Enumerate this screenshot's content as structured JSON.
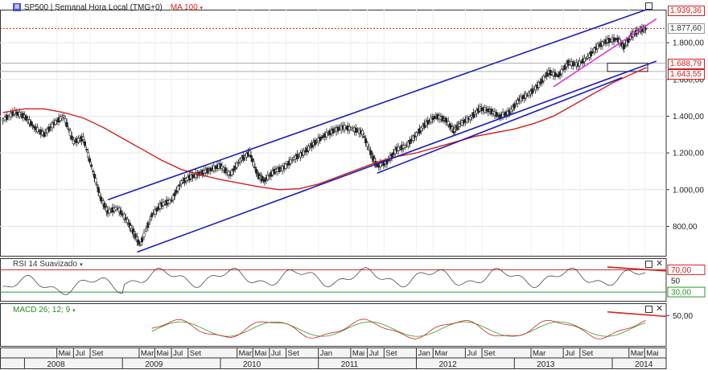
{
  "header": {
    "symbol_icon": "chart-symbol-icon",
    "title": "SP500 | Semanal Hora Local (TMG+0)",
    "ma_label": "MA 100",
    "caret": "▾"
  },
  "price_tags": [
    {
      "label": "1.939,36",
      "value": 1939.36,
      "color": "#d02020"
    },
    {
      "label": "1.877,60",
      "value": 1877.6,
      "color": "#333333"
    },
    {
      "label": "1.688,79",
      "value": 1688.79,
      "color": "#d02020"
    },
    {
      "label": "1.643,55",
      "value": 1643.55,
      "color": "#d02020"
    }
  ],
  "rsi": {
    "title": "RSI 14 Suavizado",
    "levels": [
      70,
      50,
      30
    ],
    "labels": [
      "70,00",
      "50",
      "30,00"
    ]
  },
  "macd": {
    "title": "MACD 26; 12; 9",
    "labels": [
      "50,00"
    ]
  },
  "chart_data": {
    "type": "line",
    "title": "SP500 | Semanal Hora Local (TMG+0)",
    "y_ticks": [
      {
        "label": "1.800,00",
        "value": 1800
      },
      {
        "label": "1.600,00",
        "value": 1600
      },
      {
        "label": "1.400,00",
        "value": 1400
      },
      {
        "label": "1.200,00",
        "value": 1200
      },
      {
        "label": "1.000,00",
        "value": 1000
      },
      {
        "label": "800,00",
        "value": 800
      }
    ],
    "ylim": [
      640,
      1980
    ],
    "xlim": [
      2007.75,
      2014.55
    ],
    "months": [
      {
        "label": "Mai",
        "t": 2008.33
      },
      {
        "label": "Jul",
        "t": 2008.5
      },
      {
        "label": "Set",
        "t": 2008.67
      },
      {
        "label": "Mar",
        "t": 2009.17
      },
      {
        "label": "Mai",
        "t": 2009.33
      },
      {
        "label": "Jul",
        "t": 2009.5
      },
      {
        "label": "Set",
        "t": 2009.67
      },
      {
        "label": "Mar",
        "t": 2010.17
      },
      {
        "label": "Mai",
        "t": 2010.33
      },
      {
        "label": "Jul",
        "t": 2010.5
      },
      {
        "label": "Set",
        "t": 2010.67
      },
      {
        "label": "Jan",
        "t": 2011.0
      },
      {
        "label": "Mai",
        "t": 2011.33
      },
      {
        "label": "Jul",
        "t": 2011.5
      },
      {
        "label": "Set",
        "t": 2011.67
      },
      {
        "label": "Jan",
        "t": 2012.0
      },
      {
        "label": "Mar",
        "t": 2012.17
      },
      {
        "label": "Jul",
        "t": 2012.5
      },
      {
        "label": "Set",
        "t": 2012.67
      },
      {
        "label": "Mar",
        "t": 2013.17
      },
      {
        "label": "Jul",
        "t": 2013.5
      },
      {
        "label": "Set",
        "t": 2013.67
      },
      {
        "label": "Mar",
        "t": 2014.17
      },
      {
        "label": "Mai",
        "t": 2014.33
      }
    ],
    "years": [
      {
        "label": "2008",
        "t": 2008.0
      },
      {
        "label": "2009",
        "t": 2009.0
      },
      {
        "label": "2010",
        "t": 2010.0
      },
      {
        "label": "2011",
        "t": 2011.0
      },
      {
        "label": "2012",
        "t": 2012.0
      },
      {
        "label": "2013",
        "t": 2013.0
      },
      {
        "label": "2014",
        "t": 2014.0
      }
    ],
    "series": [
      {
        "color": "#222222",
        "style": "candles",
        "points": [
          [
            2007.78,
            1380
          ],
          [
            2007.9,
            1420
          ],
          [
            2008.0,
            1400
          ],
          [
            2008.1,
            1340
          ],
          [
            2008.2,
            1300
          ],
          [
            2008.3,
            1360
          ],
          [
            2008.4,
            1400
          ],
          [
            2008.5,
            1260
          ],
          [
            2008.6,
            1280
          ],
          [
            2008.7,
            1100
          ],
          [
            2008.78,
            950
          ],
          [
            2008.85,
            880
          ],
          [
            2008.95,
            900
          ],
          [
            2009.05,
            830
          ],
          [
            2009.12,
            760
          ],
          [
            2009.18,
            700
          ],
          [
            2009.3,
            860
          ],
          [
            2009.4,
            920
          ],
          [
            2009.5,
            940
          ],
          [
            2009.6,
            1040
          ],
          [
            2009.7,
            1070
          ],
          [
            2009.8,
            1090
          ],
          [
            2009.9,
            1110
          ],
          [
            2010.0,
            1130
          ],
          [
            2010.1,
            1080
          ],
          [
            2010.2,
            1160
          ],
          [
            2010.3,
            1200
          ],
          [
            2010.38,
            1080
          ],
          [
            2010.45,
            1050
          ],
          [
            2010.55,
            1100
          ],
          [
            2010.65,
            1120
          ],
          [
            2010.75,
            1170
          ],
          [
            2010.85,
            1200
          ],
          [
            2010.95,
            1250
          ],
          [
            2011.05,
            1290
          ],
          [
            2011.15,
            1320
          ],
          [
            2011.25,
            1340
          ],
          [
            2011.35,
            1330
          ],
          [
            2011.45,
            1310
          ],
          [
            2011.55,
            1180
          ],
          [
            2011.6,
            1130
          ],
          [
            2011.7,
            1150
          ],
          [
            2011.8,
            1220
          ],
          [
            2011.9,
            1240
          ],
          [
            2012.0,
            1300
          ],
          [
            2012.1,
            1360
          ],
          [
            2012.2,
            1400
          ],
          [
            2012.3,
            1380
          ],
          [
            2012.38,
            1320
          ],
          [
            2012.45,
            1360
          ],
          [
            2012.55,
            1390
          ],
          [
            2012.65,
            1440
          ],
          [
            2012.75,
            1430
          ],
          [
            2012.85,
            1400
          ],
          [
            2012.95,
            1420
          ],
          [
            2013.05,
            1490
          ],
          [
            2013.15,
            1520
          ],
          [
            2013.25,
            1570
          ],
          [
            2013.35,
            1640
          ],
          [
            2013.45,
            1620
          ],
          [
            2013.55,
            1690
          ],
          [
            2013.65,
            1680
          ],
          [
            2013.75,
            1720
          ],
          [
            2013.85,
            1780
          ],
          [
            2013.95,
            1810
          ],
          [
            2014.05,
            1820
          ],
          [
            2014.12,
            1780
          ],
          [
            2014.2,
            1840
          ],
          [
            2014.28,
            1870
          ],
          [
            2014.35,
            1877
          ]
        ]
      },
      {
        "name": "MA 100",
        "color": "#d02020",
        "points": [
          [
            2007.78,
            1420
          ],
          [
            2008.0,
            1440
          ],
          [
            2008.2,
            1440
          ],
          [
            2008.4,
            1420
          ],
          [
            2008.6,
            1390
          ],
          [
            2008.8,
            1340
          ],
          [
            2009.0,
            1280
          ],
          [
            2009.2,
            1220
          ],
          [
            2009.4,
            1160
          ],
          [
            2009.6,
            1110
          ],
          [
            2009.8,
            1080
          ],
          [
            2010.0,
            1055
          ],
          [
            2010.2,
            1035
          ],
          [
            2010.4,
            1015
          ],
          [
            2010.6,
            1000
          ],
          [
            2010.8,
            1005
          ],
          [
            2011.0,
            1030
          ],
          [
            2011.2,
            1070
          ],
          [
            2011.4,
            1110
          ],
          [
            2011.6,
            1150
          ],
          [
            2011.8,
            1180
          ],
          [
            2012.0,
            1200
          ],
          [
            2012.2,
            1230
          ],
          [
            2012.4,
            1260
          ],
          [
            2012.6,
            1290
          ],
          [
            2012.8,
            1310
          ],
          [
            2013.0,
            1330
          ],
          [
            2013.2,
            1360
          ],
          [
            2013.4,
            1400
          ],
          [
            2013.6,
            1460
          ],
          [
            2013.8,
            1520
          ],
          [
            2014.0,
            1580
          ],
          [
            2014.2,
            1630
          ],
          [
            2014.35,
            1665
          ]
        ]
      }
    ],
    "trendlines": [
      {
        "color": "#1c1cb8",
        "from": [
          2008.85,
          945
        ],
        "to": [
          2014.4,
          1990
        ]
      },
      {
        "color": "#1c1cb8",
        "from": [
          2009.15,
          660
        ],
        "to": [
          2014.45,
          1700
        ]
      },
      {
        "color": "#1c1cb8",
        "from": [
          2011.6,
          1090
        ],
        "to": [
          2014.1,
          1610
        ]
      },
      {
        "color": "#d63cd6",
        "from": [
          2013.4,
          1560
        ],
        "to": [
          2014.45,
          1930
        ]
      }
    ],
    "reference_lines": [
      {
        "color": "#d02020",
        "value": 1877.6
      },
      {
        "color": "#b0b0b0",
        "value": 1688.79
      },
      {
        "color": "#b0b0b0",
        "value": 1643.55
      }
    ],
    "grid": true
  }
}
